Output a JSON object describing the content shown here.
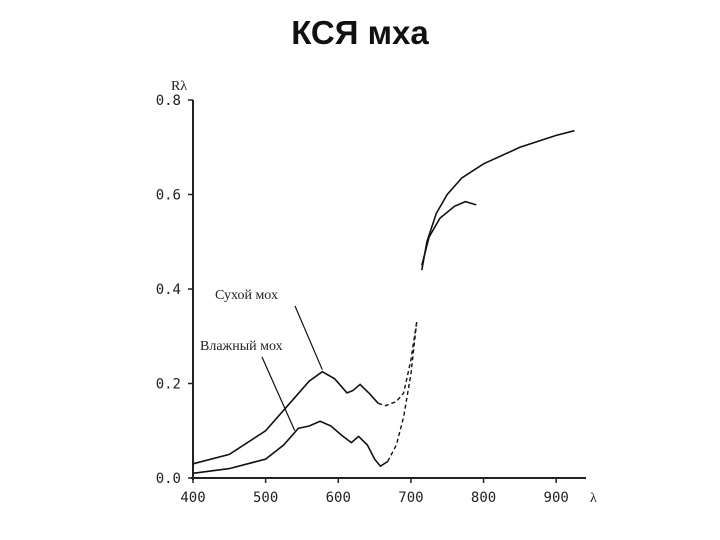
{
  "slide": {
    "title": "КСЯ мха"
  },
  "chart_data": {
    "type": "line",
    "title": "",
    "xlabel": "λ",
    "ylabel": "Rλ",
    "xlim": [
      400,
      930
    ],
    "ylim": [
      0,
      0.8
    ],
    "xticks": [
      400,
      500,
      600,
      700,
      800,
      900
    ],
    "yticks": [
      0.0,
      0.2,
      0.4,
      0.6,
      0.8
    ],
    "xtick_labels": [
      "400",
      "500",
      "600",
      "700",
      "800",
      "900"
    ],
    "ytick_labels": [
      "0.0",
      "0.2",
      "0.4",
      "0.6",
      "0.8"
    ],
    "grid": false,
    "legend": "none",
    "annotations": [
      {
        "text": "Сухой мох",
        "series": 0,
        "at_x": 578
      },
      {
        "text": "Влажный мох",
        "series": 1,
        "at_x": 540
      }
    ],
    "series": [
      {
        "name": "Сухой мох",
        "points": [
          [
            400,
            0.03
          ],
          [
            450,
            0.05
          ],
          [
            500,
            0.1
          ],
          [
            540,
            0.17
          ],
          [
            560,
            0.205
          ],
          [
            578,
            0.225
          ],
          [
            595,
            0.21
          ],
          [
            612,
            0.18
          ],
          [
            620,
            0.185
          ],
          [
            630,
            0.198
          ],
          [
            642,
            0.18
          ],
          [
            655,
            0.158
          ],
          [
            665,
            0.153
          ],
          [
            680,
            0.162
          ],
          [
            690,
            0.18
          ],
          [
            700,
            0.25
          ],
          [
            708,
            0.33
          ],
          [
            715,
            0.44
          ],
          [
            722,
            0.5
          ],
          [
            735,
            0.56
          ],
          [
            750,
            0.6
          ],
          [
            770,
            0.635
          ],
          [
            800,
            0.665
          ],
          [
            850,
            0.7
          ],
          [
            900,
            0.725
          ],
          [
            925,
            0.735
          ]
        ],
        "dashed_range": [
          655,
          710
        ]
      },
      {
        "name": "Влажный мох",
        "points": [
          [
            400,
            0.01
          ],
          [
            450,
            0.02
          ],
          [
            500,
            0.04
          ],
          [
            525,
            0.07
          ],
          [
            545,
            0.105
          ],
          [
            560,
            0.11
          ],
          [
            575,
            0.12
          ],
          [
            590,
            0.11
          ],
          [
            605,
            0.09
          ],
          [
            618,
            0.075
          ],
          [
            628,
            0.088
          ],
          [
            640,
            0.07
          ],
          [
            650,
            0.04
          ],
          [
            658,
            0.025
          ],
          [
            668,
            0.035
          ],
          [
            680,
            0.07
          ],
          [
            690,
            0.13
          ],
          [
            700,
            0.22
          ],
          [
            708,
            0.33
          ],
          [
            715,
            0.45
          ],
          [
            725,
            0.51
          ],
          [
            740,
            0.55
          ],
          [
            760,
            0.575
          ],
          [
            775,
            0.585
          ],
          [
            790,
            0.578
          ]
        ],
        "dashed_range": [
          668,
          712
        ]
      }
    ]
  }
}
